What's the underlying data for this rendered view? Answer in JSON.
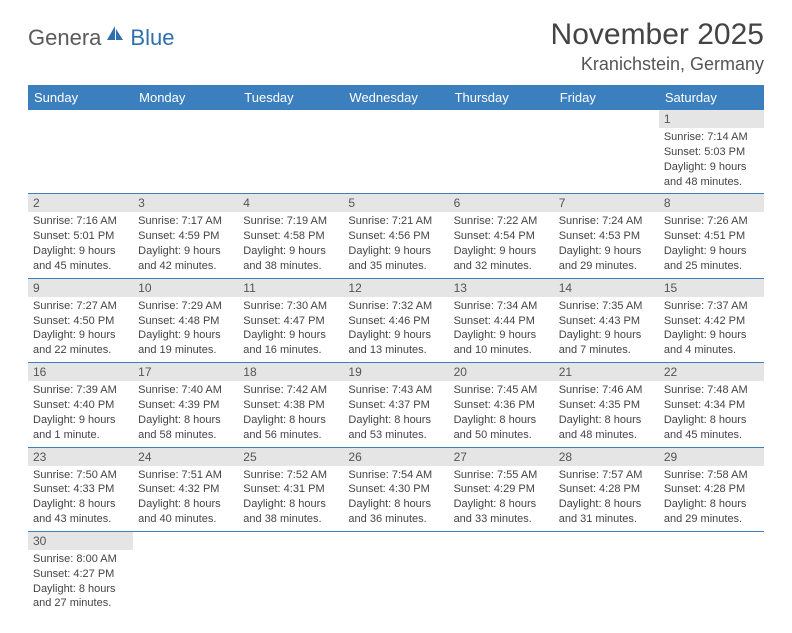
{
  "logo": {
    "part1": "Genera",
    "part2": "Blue"
  },
  "title": "November 2025",
  "location": "Kranichstein, Germany",
  "colors": {
    "header_bg": "#3b7fbf",
    "header_fg": "#ffffff",
    "daynum_bg": "#e5e5e5",
    "row_border": "#3b7fbf",
    "logo_gray": "#5a5a5a",
    "logo_blue": "#2f6fad"
  },
  "weekdays": [
    "Sunday",
    "Monday",
    "Tuesday",
    "Wednesday",
    "Thursday",
    "Friday",
    "Saturday"
  ],
  "weeks": [
    [
      null,
      null,
      null,
      null,
      null,
      null,
      {
        "n": "1",
        "sr": "Sunrise: 7:14 AM",
        "ss": "Sunset: 5:03 PM",
        "dl": "Daylight: 9 hours and 48 minutes."
      }
    ],
    [
      {
        "n": "2",
        "sr": "Sunrise: 7:16 AM",
        "ss": "Sunset: 5:01 PM",
        "dl": "Daylight: 9 hours and 45 minutes."
      },
      {
        "n": "3",
        "sr": "Sunrise: 7:17 AM",
        "ss": "Sunset: 4:59 PM",
        "dl": "Daylight: 9 hours and 42 minutes."
      },
      {
        "n": "4",
        "sr": "Sunrise: 7:19 AM",
        "ss": "Sunset: 4:58 PM",
        "dl": "Daylight: 9 hours and 38 minutes."
      },
      {
        "n": "5",
        "sr": "Sunrise: 7:21 AM",
        "ss": "Sunset: 4:56 PM",
        "dl": "Daylight: 9 hours and 35 minutes."
      },
      {
        "n": "6",
        "sr": "Sunrise: 7:22 AM",
        "ss": "Sunset: 4:54 PM",
        "dl": "Daylight: 9 hours and 32 minutes."
      },
      {
        "n": "7",
        "sr": "Sunrise: 7:24 AM",
        "ss": "Sunset: 4:53 PM",
        "dl": "Daylight: 9 hours and 29 minutes."
      },
      {
        "n": "8",
        "sr": "Sunrise: 7:26 AM",
        "ss": "Sunset: 4:51 PM",
        "dl": "Daylight: 9 hours and 25 minutes."
      }
    ],
    [
      {
        "n": "9",
        "sr": "Sunrise: 7:27 AM",
        "ss": "Sunset: 4:50 PM",
        "dl": "Daylight: 9 hours and 22 minutes."
      },
      {
        "n": "10",
        "sr": "Sunrise: 7:29 AM",
        "ss": "Sunset: 4:48 PM",
        "dl": "Daylight: 9 hours and 19 minutes."
      },
      {
        "n": "11",
        "sr": "Sunrise: 7:30 AM",
        "ss": "Sunset: 4:47 PM",
        "dl": "Daylight: 9 hours and 16 minutes."
      },
      {
        "n": "12",
        "sr": "Sunrise: 7:32 AM",
        "ss": "Sunset: 4:46 PM",
        "dl": "Daylight: 9 hours and 13 minutes."
      },
      {
        "n": "13",
        "sr": "Sunrise: 7:34 AM",
        "ss": "Sunset: 4:44 PM",
        "dl": "Daylight: 9 hours and 10 minutes."
      },
      {
        "n": "14",
        "sr": "Sunrise: 7:35 AM",
        "ss": "Sunset: 4:43 PM",
        "dl": "Daylight: 9 hours and 7 minutes."
      },
      {
        "n": "15",
        "sr": "Sunrise: 7:37 AM",
        "ss": "Sunset: 4:42 PM",
        "dl": "Daylight: 9 hours and 4 minutes."
      }
    ],
    [
      {
        "n": "16",
        "sr": "Sunrise: 7:39 AM",
        "ss": "Sunset: 4:40 PM",
        "dl": "Daylight: 9 hours and 1 minute."
      },
      {
        "n": "17",
        "sr": "Sunrise: 7:40 AM",
        "ss": "Sunset: 4:39 PM",
        "dl": "Daylight: 8 hours and 58 minutes."
      },
      {
        "n": "18",
        "sr": "Sunrise: 7:42 AM",
        "ss": "Sunset: 4:38 PM",
        "dl": "Daylight: 8 hours and 56 minutes."
      },
      {
        "n": "19",
        "sr": "Sunrise: 7:43 AM",
        "ss": "Sunset: 4:37 PM",
        "dl": "Daylight: 8 hours and 53 minutes."
      },
      {
        "n": "20",
        "sr": "Sunrise: 7:45 AM",
        "ss": "Sunset: 4:36 PM",
        "dl": "Daylight: 8 hours and 50 minutes."
      },
      {
        "n": "21",
        "sr": "Sunrise: 7:46 AM",
        "ss": "Sunset: 4:35 PM",
        "dl": "Daylight: 8 hours and 48 minutes."
      },
      {
        "n": "22",
        "sr": "Sunrise: 7:48 AM",
        "ss": "Sunset: 4:34 PM",
        "dl": "Daylight: 8 hours and 45 minutes."
      }
    ],
    [
      {
        "n": "23",
        "sr": "Sunrise: 7:50 AM",
        "ss": "Sunset: 4:33 PM",
        "dl": "Daylight: 8 hours and 43 minutes."
      },
      {
        "n": "24",
        "sr": "Sunrise: 7:51 AM",
        "ss": "Sunset: 4:32 PM",
        "dl": "Daylight: 8 hours and 40 minutes."
      },
      {
        "n": "25",
        "sr": "Sunrise: 7:52 AM",
        "ss": "Sunset: 4:31 PM",
        "dl": "Daylight: 8 hours and 38 minutes."
      },
      {
        "n": "26",
        "sr": "Sunrise: 7:54 AM",
        "ss": "Sunset: 4:30 PM",
        "dl": "Daylight: 8 hours and 36 minutes."
      },
      {
        "n": "27",
        "sr": "Sunrise: 7:55 AM",
        "ss": "Sunset: 4:29 PM",
        "dl": "Daylight: 8 hours and 33 minutes."
      },
      {
        "n": "28",
        "sr": "Sunrise: 7:57 AM",
        "ss": "Sunset: 4:28 PM",
        "dl": "Daylight: 8 hours and 31 minutes."
      },
      {
        "n": "29",
        "sr": "Sunrise: 7:58 AM",
        "ss": "Sunset: 4:28 PM",
        "dl": "Daylight: 8 hours and 29 minutes."
      }
    ],
    [
      {
        "n": "30",
        "sr": "Sunrise: 8:00 AM",
        "ss": "Sunset: 4:27 PM",
        "dl": "Daylight: 8 hours and 27 minutes."
      },
      null,
      null,
      null,
      null,
      null,
      null
    ]
  ]
}
